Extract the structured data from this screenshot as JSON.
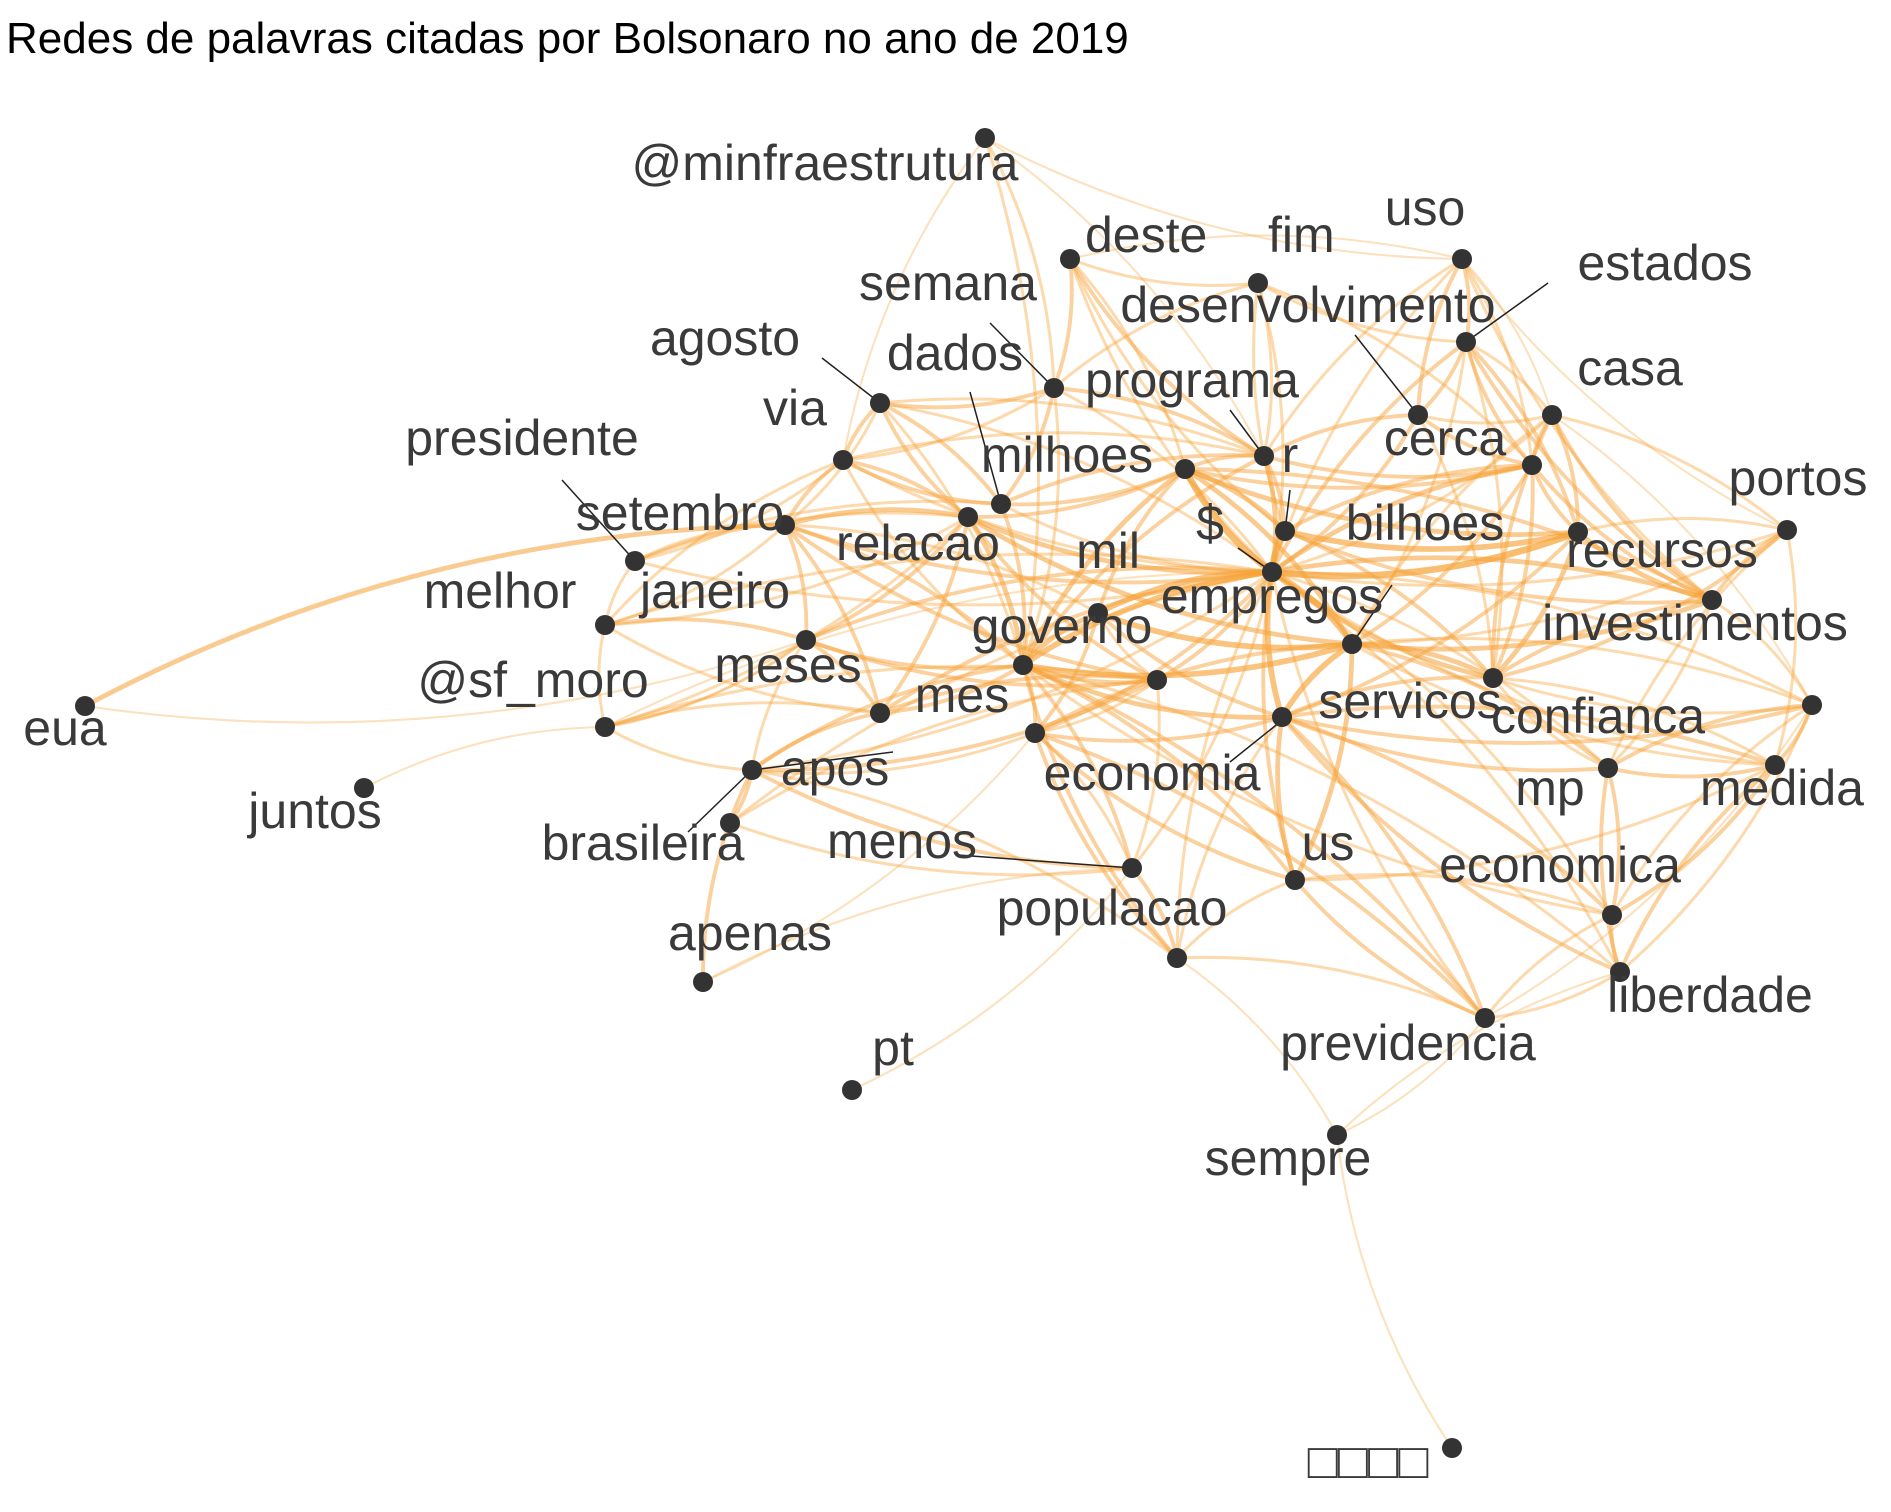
{
  "title": "Redes de palavras citadas por Bolsonaro no ano de 2019",
  "colors": {
    "edge": "#f7a43b",
    "node": "#333333",
    "label": "#3a3a3a"
  },
  "graph": {
    "type": "word-network",
    "nodes": [
      {
        "id": "@minfraestrutura",
        "label": "@minfraestrutura"
      },
      {
        "id": "deste",
        "label": "deste"
      },
      {
        "id": "fim",
        "label": "fim"
      },
      {
        "id": "uso",
        "label": "uso"
      },
      {
        "id": "estados",
        "label": "estados"
      },
      {
        "id": "semana",
        "label": "semana"
      },
      {
        "id": "desenvolvimento",
        "label": "desenvolvimento"
      },
      {
        "id": "agosto",
        "label": "agosto"
      },
      {
        "id": "dados",
        "label": "dados"
      },
      {
        "id": "programa",
        "label": "programa"
      },
      {
        "id": "casa",
        "label": "casa"
      },
      {
        "id": "via",
        "label": "via"
      },
      {
        "id": "presidente",
        "label": "presidente"
      },
      {
        "id": "milhoes",
        "label": "milhoes"
      },
      {
        "id": "r",
        "label": "r"
      },
      {
        "id": "cerca",
        "label": "cerca"
      },
      {
        "id": "portos",
        "label": "portos"
      },
      {
        "id": "setembro",
        "label": "setembro"
      },
      {
        "id": "$",
        "label": "$"
      },
      {
        "id": "bilhoes",
        "label": "bilhoes"
      },
      {
        "id": "relacao",
        "label": "relacao"
      },
      {
        "id": "mil",
        "label": "mil"
      },
      {
        "id": "recursos",
        "label": "recursos"
      },
      {
        "id": "melhor",
        "label": "melhor"
      },
      {
        "id": "janeiro",
        "label": "janeiro"
      },
      {
        "id": "empregos",
        "label": "empregos"
      },
      {
        "id": "governo",
        "label": "governo"
      },
      {
        "id": "investimentos",
        "label": "investimentos"
      },
      {
        "id": "meses",
        "label": "meses"
      },
      {
        "id": "@sf_moro",
        "label": "@sf_moro"
      },
      {
        "id": "eua",
        "label": "eua"
      },
      {
        "id": "mes",
        "label": "mes"
      },
      {
        "id": "servicos",
        "label": "servicos"
      },
      {
        "id": "confianca",
        "label": "confianca"
      },
      {
        "id": "apos",
        "label": "apos"
      },
      {
        "id": "economia",
        "label": "economia"
      },
      {
        "id": "mp",
        "label": "mp"
      },
      {
        "id": "medida",
        "label": "medida"
      },
      {
        "id": "juntos",
        "label": "juntos"
      },
      {
        "id": "brasileira",
        "label": "brasileira"
      },
      {
        "id": "menos",
        "label": "menos"
      },
      {
        "id": "us",
        "label": "us"
      },
      {
        "id": "economica",
        "label": "economica"
      },
      {
        "id": "populacao",
        "label": "populacao"
      },
      {
        "id": "apenas",
        "label": "apenas"
      },
      {
        "id": "liberdade",
        "label": "liberdade"
      },
      {
        "id": "previdencia",
        "label": "previdencia"
      },
      {
        "id": "pt",
        "label": "pt"
      },
      {
        "id": "sempre",
        "label": "sempre"
      },
      {
        "id": "unknown",
        "label": "□□□□"
      }
    ],
    "edges": [
      [
        "eua",
        "setembro",
        4
      ],
      [
        "eua",
        "janeiro",
        1
      ],
      [
        "juntos",
        "@sf_moro",
        1
      ],
      [
        "pt",
        "menos",
        1
      ],
      [
        "unknown",
        "sempre",
        1
      ],
      [
        "sempre",
        "previdencia",
        1
      ],
      [
        "sempre",
        "liberdade",
        1
      ],
      [
        "sempre",
        "populacao",
        1
      ],
      [
        "@minfraestrutura",
        "governo",
        2
      ],
      [
        "@minfraestrutura",
        "uso",
        1
      ],
      [
        "@minfraestrutura",
        "programa",
        1
      ],
      [
        "@minfraestrutura",
        "via",
        1
      ],
      [
        "apenas",
        "apos",
        3
      ],
      [
        "apenas",
        "economia",
        1
      ],
      [
        "apenas",
        "menos",
        1
      ],
      [
        "@sf_moro",
        "janeiro",
        1
      ],
      [
        "$",
        "r",
        6
      ],
      [
        "$",
        "bilhoes",
        6
      ],
      [
        "$",
        "milhoes",
        6
      ],
      [
        "$",
        "mil",
        5
      ],
      [
        "$",
        "empregos",
        5
      ],
      [
        "$",
        "governo",
        5
      ],
      [
        "$",
        "relacao",
        4
      ],
      [
        "$",
        "servicos",
        5
      ],
      [
        "$",
        "recursos",
        4
      ],
      [
        "$",
        "investimentos",
        4
      ],
      [
        "$",
        "cerca",
        4
      ],
      [
        "$",
        "programa",
        4
      ],
      [
        "$",
        "setembro",
        3
      ],
      [
        "$",
        "janeiro",
        3
      ],
      [
        "$",
        "mes",
        3
      ],
      [
        "$",
        "meses",
        3
      ],
      [
        "$",
        "confianca",
        2
      ],
      [
        "$",
        "us",
        3
      ],
      [
        "$",
        "economia",
        3
      ],
      [
        "$",
        "casa",
        2
      ],
      [
        "$",
        "estados",
        3
      ],
      [
        "$",
        "portos",
        2
      ],
      [
        "$",
        "dados",
        2
      ],
      [
        "$",
        "agosto",
        2
      ],
      [
        "$",
        "via",
        2
      ],
      [
        "$",
        "desenvolvimento",
        3
      ],
      [
        "$",
        "uso",
        2
      ],
      [
        "$",
        "fim",
        2
      ],
      [
        "$",
        "deste",
        2
      ],
      [
        "$",
        "semana",
        2
      ],
      [
        "$",
        "economica",
        2
      ],
      [
        "$",
        "populacao",
        2
      ],
      [
        "$",
        "medida",
        2
      ],
      [
        "$",
        "mp",
        2
      ],
      [
        "$",
        "liberdade",
        2
      ],
      [
        "$",
        "previdencia",
        2
      ],
      [
        "$",
        "apos",
        2
      ],
      [
        "$",
        "melhor",
        2
      ],
      [
        "$",
        "presidente",
        2
      ],
      [
        "$",
        "brasileira",
        2
      ],
      [
        "$",
        "menos",
        2
      ],
      [
        "$",
        "@sf_moro",
        1
      ],
      [
        "empregos",
        "governo",
        5
      ],
      [
        "empregos",
        "servicos",
        5
      ],
      [
        "empregos",
        "investimentos",
        4
      ],
      [
        "empregos",
        "recursos",
        4
      ],
      [
        "empregos",
        "mil",
        5
      ],
      [
        "empregos",
        "milhoes",
        4
      ],
      [
        "empregos",
        "relacao",
        4
      ],
      [
        "empregos",
        "cerca",
        3
      ],
      [
        "empregos",
        "confianca",
        3
      ],
      [
        "empregos",
        "mp",
        2
      ],
      [
        "empregos",
        "medida",
        2
      ],
      [
        "empregos",
        "portos",
        2
      ],
      [
        "empregos",
        "us",
        4
      ],
      [
        "empregos",
        "economia",
        3
      ],
      [
        "empregos",
        "casa",
        2
      ],
      [
        "empregos",
        "estados",
        2
      ],
      [
        "governo",
        "mil",
        4
      ],
      [
        "governo",
        "relacao",
        4
      ],
      [
        "governo",
        "milhoes",
        4
      ],
      [
        "governo",
        "servicos",
        4
      ],
      [
        "governo",
        "economia",
        3
      ],
      [
        "governo",
        "populacao",
        3
      ],
      [
        "governo",
        "previdencia",
        3
      ],
      [
        "governo",
        "mes",
        3
      ],
      [
        "governo",
        "meses",
        3
      ],
      [
        "governo",
        "setembro",
        3
      ],
      [
        "governo",
        "janeiro",
        3
      ],
      [
        "governo",
        "apos",
        3
      ],
      [
        "governo",
        "menos",
        3
      ],
      [
        "governo",
        "dados",
        3
      ],
      [
        "governo",
        "programa",
        3
      ],
      [
        "governo",
        "semana",
        2
      ],
      [
        "governo",
        "via",
        2
      ],
      [
        "governo",
        "agosto",
        2
      ],
      [
        "governo",
        "liberdade",
        2
      ],
      [
        "governo",
        "economica",
        2
      ],
      [
        "governo",
        "us",
        3
      ],
      [
        "relacao",
        "setembro",
        4
      ],
      [
        "relacao",
        "janeiro",
        3
      ],
      [
        "relacao",
        "mes",
        3
      ],
      [
        "relacao",
        "meses",
        3
      ],
      [
        "relacao",
        "milhoes",
        3
      ],
      [
        "relacao",
        "agosto",
        3
      ],
      [
        "relacao",
        "via",
        3
      ],
      [
        "relacao",
        "melhor",
        2
      ],
      [
        "relacao",
        "presidente",
        2
      ],
      [
        "relacao",
        "@sf_moro",
        2
      ],
      [
        "mil",
        "servicos",
        3
      ],
      [
        "mil",
        "milhoes",
        3
      ],
      [
        "mil",
        "setembro",
        2
      ],
      [
        "mil",
        "economia",
        3
      ],
      [
        "mil",
        "mes",
        2
      ],
      [
        "milhoes",
        "r",
        4
      ],
      [
        "milhoes",
        "bilhoes",
        4
      ],
      [
        "milhoes",
        "programa",
        3
      ],
      [
        "milhoes",
        "cerca",
        3
      ],
      [
        "milhoes",
        "recursos",
        3
      ],
      [
        "r",
        "bilhoes",
        5
      ],
      [
        "r",
        "cerca",
        3
      ],
      [
        "r",
        "programa",
        3
      ],
      [
        "r",
        "investimentos",
        3
      ],
      [
        "r",
        "recursos",
        3
      ],
      [
        "bilhoes",
        "investimentos",
        4
      ],
      [
        "bilhoes",
        "recursos",
        4
      ],
      [
        "bilhoes",
        "cerca",
        3
      ],
      [
        "bilhoes",
        "casa",
        3
      ],
      [
        "bilhoes",
        "portos",
        2
      ],
      [
        "bilhoes",
        "estados",
        3
      ],
      [
        "bilhoes",
        "servicos",
        3
      ],
      [
        "servicos",
        "us",
        4
      ],
      [
        "servicos",
        "economia",
        3
      ],
      [
        "servicos",
        "confianca",
        3
      ],
      [
        "servicos",
        "mp",
        3
      ],
      [
        "servicos",
        "medida",
        3
      ],
      [
        "servicos",
        "economica",
        3
      ],
      [
        "servicos",
        "liberdade",
        3
      ],
      [
        "servicos",
        "previdencia",
        3
      ],
      [
        "servicos",
        "populacao",
        2
      ],
      [
        "servicos",
        "investimentos",
        3
      ],
      [
        "confianca",
        "mp",
        3
      ],
      [
        "confianca",
        "medida",
        3
      ],
      [
        "confianca",
        "liberdade",
        3
      ],
      [
        "confianca",
        "economica",
        3
      ],
      [
        "confianca",
        "recursos",
        2
      ],
      [
        "confianca",
        "investimentos",
        2
      ],
      [
        "mp",
        "liberdade",
        3
      ],
      [
        "mp",
        "economica",
        3
      ],
      [
        "mp",
        "medida",
        3
      ],
      [
        "liberdade",
        "economica",
        3
      ],
      [
        "liberdade",
        "medida",
        2
      ],
      [
        "liberdade",
        "previdencia",
        2
      ],
      [
        "economia",
        "populacao",
        3
      ],
      [
        "economia",
        "previdencia",
        3
      ],
      [
        "economia",
        "us",
        3
      ],
      [
        "economia",
        "menos",
        2
      ],
      [
        "economia",
        "mes",
        2
      ],
      [
        "economia",
        "apos",
        2
      ],
      [
        "populacao",
        "menos",
        3
      ],
      [
        "populacao",
        "previdencia",
        2
      ],
      [
        "populacao",
        "apos",
        2
      ],
      [
        "populacao",
        "us",
        2
      ],
      [
        "us",
        "previdencia",
        3
      ],
      [
        "us",
        "economica",
        2
      ],
      [
        "us",
        "mp",
        2
      ],
      [
        "setembro",
        "janeiro",
        3
      ],
      [
        "setembro",
        "mes",
        3
      ],
      [
        "setembro",
        "meses",
        3
      ],
      [
        "setembro",
        "presidente",
        2
      ],
      [
        "setembro",
        "via",
        3
      ],
      [
        "setembro",
        "agosto",
        2
      ],
      [
        "setembro",
        "melhor",
        2
      ],
      [
        "janeiro",
        "melhor",
        3
      ],
      [
        "janeiro",
        "meses",
        3
      ],
      [
        "janeiro",
        "mes",
        3
      ],
      [
        "janeiro",
        "@sf_moro",
        2
      ],
      [
        "janeiro",
        "apos",
        2
      ],
      [
        "meses",
        "mes",
        3
      ],
      [
        "meses",
        "apos",
        3
      ],
      [
        "meses",
        "melhor",
        2
      ],
      [
        "meses",
        "@sf_moro",
        2
      ],
      [
        "mes",
        "apos",
        3
      ],
      [
        "mes",
        "brasileira",
        2
      ],
      [
        "mes",
        "menos",
        2
      ],
      [
        "mes",
        "@sf_moro",
        2
      ],
      [
        "apos",
        "brasileira",
        3
      ],
      [
        "apos",
        "menos",
        3
      ],
      [
        "apos",
        "@sf_moro",
        2
      ],
      [
        "brasileira",
        "menos",
        2
      ],
      [
        "via",
        "agosto",
        3
      ],
      [
        "via",
        "dados",
        3
      ],
      [
        "via",
        "programa",
        2
      ],
      [
        "via",
        "semana",
        2
      ],
      [
        "via",
        "presidente",
        2
      ],
      [
        "via",
        "melhor",
        2
      ],
      [
        "agosto",
        "dados",
        3
      ],
      [
        "agosto",
        "semana",
        3
      ],
      [
        "agosto",
        "programa",
        2
      ],
      [
        "dados",
        "semana",
        3
      ],
      [
        "dados",
        "programa",
        3
      ],
      [
        "dados",
        "milhoes",
        3
      ],
      [
        "semana",
        "programa",
        3
      ],
      [
        "semana",
        "deste",
        3
      ],
      [
        "semana",
        "fim",
        2
      ],
      [
        "semana",
        "@minfraestrutura",
        2
      ],
      [
        "programa",
        "desenvolvimento",
        3
      ],
      [
        "programa",
        "cerca",
        3
      ],
      [
        "programa",
        "uso",
        2
      ],
      [
        "programa",
        "fim",
        2
      ],
      [
        "programa",
        "deste",
        3
      ],
      [
        "deste",
        "fim",
        2
      ],
      [
        "deste",
        "uso",
        1
      ],
      [
        "deste",
        "r",
        2
      ],
      [
        "deste",
        "milhoes",
        2
      ],
      [
        "fim",
        "r",
        2
      ],
      [
        "fim",
        "cerca",
        2
      ],
      [
        "fim",
        "estados",
        2
      ],
      [
        "uso",
        "estados",
        3
      ],
      [
        "uso",
        "desenvolvimento",
        3
      ],
      [
        "uso",
        "cerca",
        2
      ],
      [
        "uso",
        "recursos",
        2
      ],
      [
        "uso",
        "casa",
        1
      ],
      [
        "uso",
        "portos",
        1
      ],
      [
        "estados",
        "desenvolvimento",
        3
      ],
      [
        "estados",
        "cerca",
        3
      ],
      [
        "estados",
        "casa",
        2
      ],
      [
        "estados",
        "recursos",
        3
      ],
      [
        "estados",
        "investimentos",
        2
      ],
      [
        "desenvolvimento",
        "cerca",
        3
      ],
      [
        "desenvolvimento",
        "investimentos",
        2
      ],
      [
        "desenvolvimento",
        "casa",
        2
      ],
      [
        "cerca",
        "casa",
        3
      ],
      [
        "cerca",
        "recursos",
        3
      ],
      [
        "cerca",
        "investimentos",
        3
      ],
      [
        "casa",
        "recursos",
        3
      ],
      [
        "casa",
        "portos",
        2
      ],
      [
        "casa",
        "investimentos",
        3
      ],
      [
        "casa",
        "medida",
        1
      ],
      [
        "portos",
        "recursos",
        3
      ],
      [
        "portos",
        "investimentos",
        3
      ],
      [
        "portos",
        "confianca",
        2
      ],
      [
        "portos",
        "mp",
        2
      ],
      [
        "recursos",
        "investimentos",
        3
      ],
      [
        "recursos",
        "medida",
        2
      ],
      [
        "investimentos",
        "medida",
        2
      ],
      [
        "investimentos",
        "mp",
        2
      ],
      [
        "presidente",
        "melhor",
        2
      ],
      [
        "presidente",
        "dados",
        2
      ],
      [
        "melhor",
        "@sf_moro",
        2
      ],
      [
        "previdencia",
        "economica",
        2
      ],
      [
        "previdencia",
        "medida",
        1
      ],
      [
        "economica",
        "medida",
        2
      ]
    ]
  }
}
